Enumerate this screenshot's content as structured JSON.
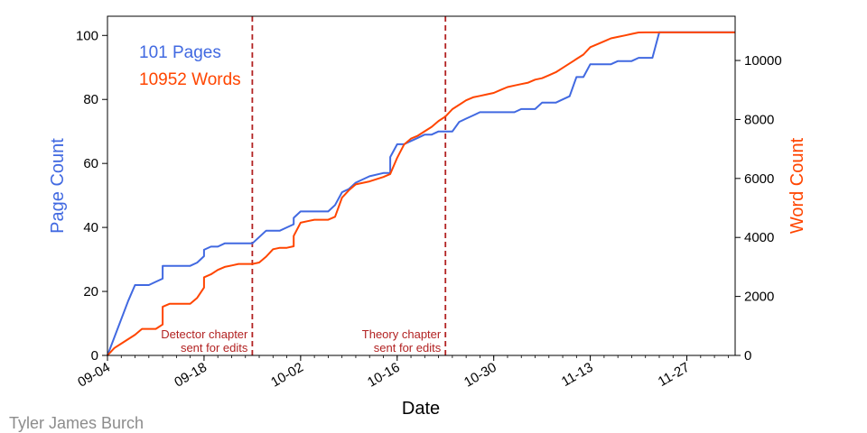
{
  "credit": "Tyler James Burch",
  "chart_data": {
    "type": "line",
    "xlabel": "Date",
    "ylabel_left": "Page Count",
    "ylabel_right": "Word Count",
    "x_ticks": [
      "09-04",
      "09-18",
      "10-02",
      "10-16",
      "10-30",
      "11-13",
      "11-27"
    ],
    "x_range": [
      "09-04",
      "12-04"
    ],
    "ylim_left": [
      0,
      106
    ],
    "ylim_right": [
      0,
      11500
    ],
    "yticks_left": [
      0,
      20,
      40,
      60,
      80,
      100
    ],
    "yticks_right": [
      0,
      2000,
      4000,
      6000,
      8000,
      10000
    ],
    "legend": [
      "101 Pages",
      "10952 Words"
    ],
    "colors": {
      "pages": "#4169e1",
      "words": "#ff4500",
      "annotation": "#b22222"
    },
    "annotations": [
      {
        "date": "09-25",
        "text": [
          "Detector chapter",
          "sent for edits"
        ]
      },
      {
        "date": "10-23",
        "text": [
          "Theory chapter",
          "sent for edits"
        ]
      }
    ],
    "series": [
      {
        "name": "Page Count",
        "axis": "left",
        "x": [
          "09-04",
          "09-07",
          "09-08",
          "09-09",
          "09-10",
          "09-11",
          "09-12",
          "09-12",
          "09-13",
          "09-14",
          "09-15",
          "09-16",
          "09-17",
          "09-18",
          "09-18",
          "09-19",
          "09-20",
          "09-21",
          "09-22",
          "09-23",
          "09-24",
          "09-25",
          "09-26",
          "09-27",
          "09-28",
          "09-29",
          "09-30",
          "10-01",
          "10-01",
          "10-02",
          "10-03",
          "10-04",
          "10-05",
          "10-06",
          "10-07",
          "10-08",
          "10-09",
          "10-10",
          "10-12",
          "10-14",
          "10-15",
          "10-15",
          "10-16",
          "10-17",
          "10-18",
          "10-19",
          "10-20",
          "10-21",
          "10-22",
          "10-23",
          "10-24",
          "10-25",
          "10-26",
          "10-27",
          "10-28",
          "10-29",
          "10-30",
          "10-31",
          "11-01",
          "11-02",
          "11-03",
          "11-04",
          "11-05",
          "11-06",
          "11-07",
          "11-08",
          "11-09",
          "11-10",
          "11-11",
          "11-12",
          "11-13",
          "11-14",
          "11-15",
          "11-16",
          "11-17",
          "11-18",
          "11-19",
          "11-20",
          "11-21",
          "11-22",
          "11-23",
          "11-24",
          "11-25",
          "11-26",
          "11-27",
          "11-28",
          "11-29",
          "11-30",
          "12-01",
          "12-02",
          "12-03",
          "12-04"
        ],
        "y": [
          0,
          17,
          22,
          22,
          22,
          23,
          24,
          28,
          28,
          28,
          28,
          28,
          29,
          31,
          33,
          34,
          34,
          35,
          35,
          35,
          35,
          35,
          37,
          39,
          39,
          39,
          40,
          41,
          43,
          45,
          45,
          45,
          45,
          45,
          47,
          51,
          52,
          54,
          56,
          57,
          57,
          62,
          66,
          66,
          67,
          68,
          69,
          69,
          70,
          70,
          70,
          73,
          74,
          75,
          76,
          76,
          76,
          76,
          76,
          76,
          77,
          77,
          77,
          79,
          79,
          79,
          80,
          81,
          87,
          87,
          91,
          91,
          91,
          91,
          92,
          92,
          92,
          93,
          93,
          93,
          101,
          101,
          101,
          101,
          101,
          101,
          101,
          101,
          101,
          101,
          101,
          101
        ]
      },
      {
        "name": "Word Count",
        "axis": "right",
        "x": [
          "09-04",
          "09-05",
          "09-06",
          "09-07",
          "09-08",
          "09-09",
          "09-10",
          "09-11",
          "09-12",
          "09-12",
          "09-13",
          "09-14",
          "09-15",
          "09-16",
          "09-17",
          "09-18",
          "09-18",
          "09-19",
          "09-20",
          "09-21",
          "09-22",
          "09-23",
          "09-24",
          "09-25",
          "09-26",
          "09-27",
          "09-28",
          "09-29",
          "09-30",
          "10-01",
          "10-01",
          "10-02",
          "10-03",
          "10-04",
          "10-05",
          "10-06",
          "10-07",
          "10-08",
          "10-09",
          "10-10",
          "10-12",
          "10-14",
          "10-15",
          "10-16",
          "10-17",
          "10-18",
          "10-19",
          "10-20",
          "10-21",
          "10-22",
          "10-23",
          "10-24",
          "10-25",
          "10-26",
          "10-27",
          "10-28",
          "10-29",
          "10-30",
          "10-31",
          "11-01",
          "11-02",
          "11-03",
          "11-04",
          "11-05",
          "11-06",
          "11-07",
          "11-08",
          "11-09",
          "11-10",
          "11-11",
          "11-12",
          "11-13",
          "11-14",
          "11-15",
          "11-16",
          "11-17",
          "11-18",
          "11-19",
          "11-20",
          "11-21",
          "11-22",
          "11-23",
          "11-24",
          "11-25",
          "11-26",
          "11-27",
          "11-28",
          "11-29",
          "11-30",
          "12-01",
          "12-02",
          "12-03",
          "12-04"
        ],
        "y": [
          0,
          250,
          400,
          550,
          700,
          900,
          900,
          900,
          1050,
          1650,
          1750,
          1750,
          1750,
          1750,
          1950,
          2300,
          2650,
          2750,
          2900,
          3000,
          3050,
          3100,
          3100,
          3100,
          3150,
          3350,
          3600,
          3650,
          3650,
          3700,
          4050,
          4500,
          4550,
          4600,
          4600,
          4600,
          4700,
          5350,
          5600,
          5800,
          5900,
          6050,
          6150,
          6700,
          7150,
          7350,
          7450,
          7600,
          7750,
          7950,
          8100,
          8350,
          8500,
          8650,
          8750,
          8800,
          8850,
          8900,
          9000,
          9100,
          9150,
          9200,
          9250,
          9350,
          9400,
          9500,
          9600,
          9750,
          9900,
          10050,
          10200,
          10450,
          10550,
          10650,
          10750,
          10800,
          10850,
          10900,
          10950,
          10952,
          10952,
          10952,
          10952,
          10952,
          10952,
          10952,
          10952,
          10952,
          10952,
          10952,
          10952,
          10952,
          10952
        ]
      }
    ]
  }
}
